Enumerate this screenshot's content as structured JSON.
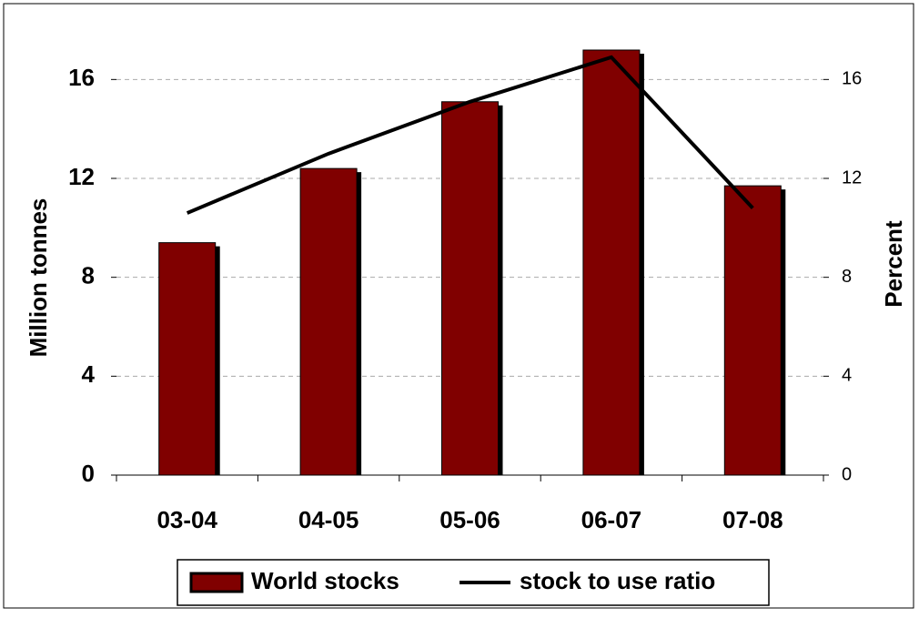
{
  "chart_data": {
    "type": "bar",
    "categories": [
      "03-04",
      "04-05",
      "05-06",
      "06-07",
      "07-08"
    ],
    "y_label": "Million tonnes",
    "y2_label": "Percent",
    "ylim": [
      0,
      18
    ],
    "yticks": [
      0,
      4,
      8,
      12,
      16
    ],
    "y2lim": [
      0,
      18
    ],
    "y2ticks": [
      0,
      4,
      8,
      12,
      16
    ],
    "grid": true,
    "legend": "bottom",
    "series": [
      {
        "name": "World stocks",
        "type": "bar",
        "color": "#800000",
        "values": [
          9.4,
          12.4,
          15.1,
          17.2,
          11.7
        ]
      },
      {
        "name": "stock to use ratio",
        "type": "line",
        "axis": "y2",
        "color": "#000000",
        "values": [
          10.6,
          13.0,
          15.1,
          16.9,
          10.8
        ]
      }
    ]
  }
}
